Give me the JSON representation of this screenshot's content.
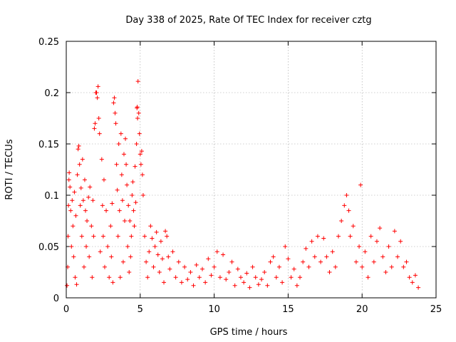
{
  "chart_data": {
    "type": "scatter",
    "title": "Day 338 of 2025, Rate Of TEC Index for receiver cztg",
    "xlabel": "GPS time / hours",
    "ylabel": "ROTI / TECUs",
    "xlim": [
      0,
      25
    ],
    "ylim": [
      0,
      0.25
    ],
    "xticks": [
      0,
      5,
      10,
      15,
      20,
      25
    ],
    "xtick_labels": [
      "0",
      "5",
      "10",
      "15",
      "20",
      "25"
    ],
    "yticks": [
      0,
      0.05,
      0.1,
      0.15,
      0.2,
      0.25
    ],
    "ytick_labels": [
      "0",
      "0.05",
      "0.1",
      "0.15",
      "0.2",
      "0.25"
    ],
    "grid": true,
    "marker": "plus",
    "color": "#ff0000",
    "series": [
      {
        "points": [
          [
            0.05,
            0.012
          ],
          [
            0.1,
            0.03
          ],
          [
            0.12,
            0.06
          ],
          [
            0.15,
            0.09
          ],
          [
            0.18,
            0.115
          ],
          [
            0.2,
            0.122
          ],
          [
            0.25,
            0.108
          ],
          [
            0.3,
            0.085
          ],
          [
            0.35,
            0.05
          ],
          [
            0.4,
            0.095
          ],
          [
            0.45,
            0.07
          ],
          [
            0.5,
            0.04
          ],
          [
            0.55,
            0.103
          ],
          [
            0.6,
            0.02
          ],
          [
            0.65,
            0.08
          ],
          [
            0.7,
            0.013
          ],
          [
            0.75,
            0.12
          ],
          [
            0.8,
            0.145
          ],
          [
            0.85,
            0.148
          ],
          [
            0.9,
            0.13
          ],
          [
            0.95,
            0.09
          ],
          [
            1.0,
            0.107
          ],
          [
            1.05,
            0.06
          ],
          [
            1.1,
            0.135
          ],
          [
            1.15,
            0.095
          ],
          [
            1.2,
            0.03
          ],
          [
            1.25,
            0.115
          ],
          [
            1.3,
            0.085
          ],
          [
            1.35,
            0.05
          ],
          [
            1.4,
            0.075
          ],
          [
            1.5,
            0.098
          ],
          [
            1.55,
            0.04
          ],
          [
            1.6,
            0.108
          ],
          [
            1.7,
            0.07
          ],
          [
            1.75,
            0.02
          ],
          [
            1.8,
            0.095
          ],
          [
            1.85,
            0.06
          ],
          [
            1.9,
            0.165
          ],
          [
            1.95,
            0.17
          ],
          [
            2.0,
            0.2
          ],
          [
            2.05,
            0.2
          ],
          [
            2.1,
            0.195
          ],
          [
            2.15,
            0.206
          ],
          [
            2.2,
            0.175
          ],
          [
            2.25,
            0.16
          ],
          [
            2.3,
            0.045
          ],
          [
            2.4,
            0.135
          ],
          [
            2.45,
            0.09
          ],
          [
            2.5,
            0.06
          ],
          [
            2.55,
            0.115
          ],
          [
            2.6,
            0.03
          ],
          [
            2.7,
            0.085
          ],
          [
            2.8,
            0.05
          ],
          [
            2.9,
            0.02
          ],
          [
            3.0,
            0.07
          ],
          [
            3.05,
            0.04
          ],
          [
            3.1,
            0.092
          ],
          [
            3.15,
            0.015
          ],
          [
            3.2,
            0.19
          ],
          [
            3.25,
            0.195
          ],
          [
            3.3,
            0.18
          ],
          [
            3.35,
            0.17
          ],
          [
            3.4,
            0.13
          ],
          [
            3.45,
            0.105
          ],
          [
            3.5,
            0.06
          ],
          [
            3.55,
            0.15
          ],
          [
            3.6,
            0.085
          ],
          [
            3.65,
            0.02
          ],
          [
            3.7,
            0.16
          ],
          [
            3.75,
            0.12
          ],
          [
            3.8,
            0.095
          ],
          [
            3.85,
            0.035
          ],
          [
            3.9,
            0.14
          ],
          [
            3.95,
            0.075
          ],
          [
            4.0,
            0.155
          ],
          [
            4.05,
            0.13
          ],
          [
            4.1,
            0.11
          ],
          [
            4.15,
            0.05
          ],
          [
            4.2,
            0.09
          ],
          [
            4.25,
            0.025
          ],
          [
            4.3,
            0.075
          ],
          [
            4.35,
            0.04
          ],
          [
            4.4,
            0.06
          ],
          [
            4.45,
            0.1
          ],
          [
            4.5,
            0.113
          ],
          [
            4.55,
            0.085
          ],
          [
            4.6,
            0.07
          ],
          [
            4.65,
            0.128
          ],
          [
            4.7,
            0.093
          ],
          [
            4.75,
            0.15
          ],
          [
            4.78,
            0.185
          ],
          [
            4.8,
            0.186
          ],
          [
            4.82,
            0.175
          ],
          [
            4.85,
            0.211
          ],
          [
            4.9,
            0.18
          ],
          [
            4.95,
            0.16
          ],
          [
            5.0,
            0.14
          ],
          [
            5.05,
            0.13
          ],
          [
            5.1,
            0.143
          ],
          [
            5.15,
            0.12
          ],
          [
            5.2,
            0.1
          ],
          [
            5.3,
            0.06
          ],
          [
            5.4,
            0.035
          ],
          [
            5.5,
            0.02
          ],
          [
            5.6,
            0.045
          ],
          [
            5.7,
            0.07
          ],
          [
            5.8,
            0.058
          ],
          [
            5.9,
            0.03
          ],
          [
            6.0,
            0.05
          ],
          [
            6.1,
            0.064
          ],
          [
            6.2,
            0.042
          ],
          [
            6.3,
            0.025
          ],
          [
            6.4,
            0.055
          ],
          [
            6.5,
            0.038
          ],
          [
            6.6,
            0.015
          ],
          [
            6.7,
            0.065
          ],
          [
            6.8,
            0.06
          ],
          [
            6.9,
            0.04
          ],
          [
            7.0,
            0.028
          ],
          [
            7.2,
            0.045
          ],
          [
            7.4,
            0.02
          ],
          [
            7.6,
            0.035
          ],
          [
            7.8,
            0.015
          ],
          [
            8.0,
            0.03
          ],
          [
            8.2,
            0.018
          ],
          [
            8.4,
            0.025
          ],
          [
            8.6,
            0.012
          ],
          [
            8.8,
            0.032
          ],
          [
            9.0,
            0.02
          ],
          [
            9.2,
            0.028
          ],
          [
            9.4,
            0.015
          ],
          [
            9.6,
            0.038
          ],
          [
            9.8,
            0.022
          ],
          [
            10.0,
            0.03
          ],
          [
            10.2,
            0.045
          ],
          [
            10.4,
            0.02
          ],
          [
            10.6,
            0.042
          ],
          [
            10.8,
            0.018
          ],
          [
            11.0,
            0.025
          ],
          [
            11.2,
            0.035
          ],
          [
            11.4,
            0.012
          ],
          [
            11.6,
            0.028
          ],
          [
            11.8,
            0.02
          ],
          [
            12.0,
            0.015
          ],
          [
            12.2,
            0.024
          ],
          [
            12.4,
            0.01
          ],
          [
            12.6,
            0.03
          ],
          [
            12.8,
            0.02
          ],
          [
            13.0,
            0.013
          ],
          [
            13.2,
            0.018
          ],
          [
            13.4,
            0.025
          ],
          [
            13.6,
            0.012
          ],
          [
            13.8,
            0.035
          ],
          [
            14.0,
            0.04
          ],
          [
            14.2,
            0.02
          ],
          [
            14.4,
            0.03
          ],
          [
            14.6,
            0.015
          ],
          [
            14.8,
            0.05
          ],
          [
            15.0,
            0.038
          ],
          [
            15.2,
            0.02
          ],
          [
            15.4,
            0.028
          ],
          [
            15.6,
            0.012
          ],
          [
            15.8,
            0.02
          ],
          [
            16.0,
            0.035
          ],
          [
            16.2,
            0.048
          ],
          [
            16.4,
            0.03
          ],
          [
            16.6,
            0.055
          ],
          [
            16.8,
            0.04
          ],
          [
            17.0,
            0.06
          ],
          [
            17.2,
            0.035
          ],
          [
            17.4,
            0.058
          ],
          [
            17.6,
            0.04
          ],
          [
            17.8,
            0.025
          ],
          [
            18.0,
            0.045
          ],
          [
            18.2,
            0.03
          ],
          [
            18.4,
            0.06
          ],
          [
            18.6,
            0.075
          ],
          [
            18.8,
            0.09
          ],
          [
            18.95,
            0.1
          ],
          [
            19.1,
            0.085
          ],
          [
            19.2,
            0.06
          ],
          [
            19.4,
            0.07
          ],
          [
            19.6,
            0.035
          ],
          [
            19.8,
            0.05
          ],
          [
            19.9,
            0.11
          ],
          [
            20.0,
            0.03
          ],
          [
            20.2,
            0.045
          ],
          [
            20.4,
            0.02
          ],
          [
            20.6,
            0.06
          ],
          [
            20.8,
            0.035
          ],
          [
            21.0,
            0.055
          ],
          [
            21.2,
            0.068
          ],
          [
            21.4,
            0.04
          ],
          [
            21.6,
            0.025
          ],
          [
            21.8,
            0.05
          ],
          [
            22.0,
            0.03
          ],
          [
            22.2,
            0.065
          ],
          [
            22.4,
            0.04
          ],
          [
            22.6,
            0.055
          ],
          [
            22.8,
            0.03
          ],
          [
            23.0,
            0.035
          ],
          [
            23.2,
            0.02
          ],
          [
            23.4,
            0.015
          ],
          [
            23.6,
            0.022
          ],
          [
            23.8,
            0.01
          ]
        ]
      }
    ]
  }
}
